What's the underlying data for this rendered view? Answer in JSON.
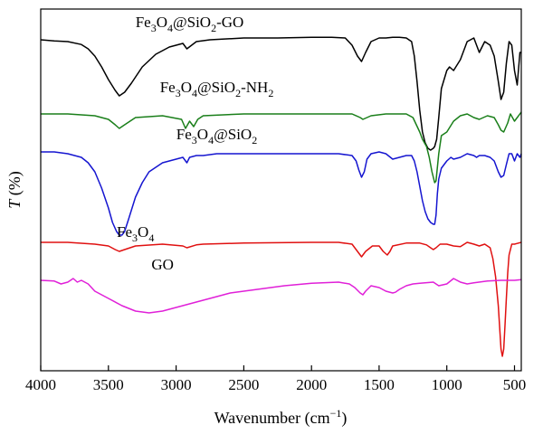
{
  "chart_data": {
    "type": "line",
    "title": "",
    "xlabel_main": "Wavenumber (cm",
    "xlabel_sup": "−1",
    "xlabel_tail": ")",
    "ylabel_italic": "T",
    "ylabel_tail": " (%)",
    "x_ticks": [
      "4000",
      "3500",
      "3000",
      "2500",
      "2000",
      "1500",
      "1000",
      "500"
    ],
    "xlim": [
      4000,
      450
    ],
    "x_reversed": true,
    "ylim": [
      0,
      100
    ],
    "y_ticks_shown": false,
    "grid": false,
    "legend": "none (series labelled inline)",
    "series": [
      {
        "name": "Fe3O4@SiO2-GO",
        "label_parts": [
          [
            "Fe",
            ""
          ],
          [
            "3",
            "sub"
          ],
          [
            "O",
            ""
          ],
          [
            "4",
            "sub"
          ],
          [
            "@SiO",
            ""
          ],
          [
            "2",
            "sub"
          ],
          [
            "-GO",
            ""
          ]
        ],
        "color": "#000000",
        "x": [
          4000,
          3900,
          3800,
          3700,
          3650,
          3600,
          3550,
          3500,
          3450,
          3420,
          3380,
          3330,
          3250,
          3150,
          3050,
          2950,
          2920,
          2850,
          2750,
          2500,
          2250,
          2000,
          1850,
          1750,
          1700,
          1660,
          1630,
          1600,
          1560,
          1500,
          1450,
          1400,
          1350,
          1300,
          1260,
          1240,
          1220,
          1200,
          1180,
          1160,
          1140,
          1120,
          1100,
          1090,
          1075,
          1060,
          1040,
          1000,
          980,
          950,
          900,
          850,
          800,
          760,
          720,
          680,
          650,
          620,
          600,
          580,
          560,
          540,
          520,
          500,
          480,
          460,
          450
        ],
        "y": [
          91.5,
          91.2,
          91.0,
          90.2,
          89.0,
          87.0,
          84.0,
          80.5,
          77.5,
          76.0,
          77.0,
          79.5,
          84.0,
          87.5,
          89.5,
          90.5,
          89.0,
          91.0,
          91.5,
          92.0,
          92.0,
          92.2,
          92.2,
          92.0,
          90.0,
          87.0,
          85.5,
          88.0,
          91.0,
          92.0,
          92.0,
          92.2,
          92.2,
          92.0,
          91.0,
          87.0,
          80.0,
          72.0,
          66.0,
          63.0,
          61.5,
          61.0,
          61.5,
          62.0,
          64.0,
          70.0,
          78.0,
          83.0,
          84.0,
          83.0,
          86.0,
          91.0,
          92.0,
          88.0,
          91.0,
          90.0,
          87.0,
          80.0,
          75.0,
          77.0,
          85.0,
          91.0,
          90.0,
          83.0,
          79.0,
          88.0,
          88.0
        ]
      },
      {
        "name": "Fe3O4@SiO2-NH2",
        "label_parts": [
          [
            "Fe",
            ""
          ],
          [
            "3",
            "sub"
          ],
          [
            "O",
            ""
          ],
          [
            "4",
            "sub"
          ],
          [
            "@SiO",
            ""
          ],
          [
            "2",
            "sub"
          ],
          [
            "-NH",
            ""
          ],
          [
            "2",
            "sub"
          ]
        ],
        "color": "#1a7f1a",
        "x": [
          4000,
          3800,
          3600,
          3500,
          3450,
          3420,
          3380,
          3300,
          3100,
          2960,
          2930,
          2900,
          2870,
          2840,
          2800,
          2500,
          2000,
          1700,
          1640,
          1620,
          1560,
          1450,
          1400,
          1300,
          1250,
          1200,
          1180,
          1150,
          1130,
          1110,
          1090,
          1080,
          1060,
          1040,
          1000,
          950,
          900,
          850,
          800,
          760,
          700,
          650,
          620,
          600,
          580,
          550,
          530,
          500,
          480,
          450
        ],
        "y": [
          71.0,
          71.0,
          70.5,
          69.5,
          68.0,
          67.0,
          68.0,
          70.0,
          70.5,
          69.5,
          67.0,
          69.0,
          67.5,
          69.5,
          70.5,
          71.0,
          71.0,
          71.0,
          70.0,
          69.5,
          70.5,
          71.0,
          71.0,
          71.0,
          70.0,
          66.0,
          64.0,
          62.0,
          59.0,
          55.0,
          52.0,
          52.5,
          60.0,
          65.0,
          66.0,
          69.0,
          70.5,
          71.0,
          70.0,
          69.5,
          70.5,
          70.0,
          68.0,
          66.5,
          66.0,
          68.5,
          71.0,
          69.0,
          70.0,
          71.5
        ]
      },
      {
        "name": "Fe3O4@SiO2",
        "label_parts": [
          [
            "Fe",
            ""
          ],
          [
            "3",
            "sub"
          ],
          [
            "O",
            ""
          ],
          [
            "4",
            "sub"
          ],
          [
            "@SiO",
            ""
          ],
          [
            "2",
            "sub"
          ]
        ],
        "color": "#1515d0",
        "x": [
          4000,
          3900,
          3800,
          3700,
          3650,
          3600,
          3550,
          3500,
          3470,
          3440,
          3420,
          3400,
          3380,
          3350,
          3300,
          3250,
          3200,
          3100,
          3000,
          2950,
          2920,
          2900,
          2850,
          2800,
          2700,
          2500,
          2200,
          2000,
          1800,
          1700,
          1670,
          1650,
          1630,
          1610,
          1590,
          1560,
          1500,
          1450,
          1400,
          1350,
          1300,
          1260,
          1240,
          1220,
          1200,
          1180,
          1160,
          1140,
          1120,
          1100,
          1090,
          1080,
          1070,
          1060,
          1040,
          1000,
          970,
          950,
          900,
          850,
          800,
          780,
          760,
          720,
          680,
          650,
          620,
          600,
          580,
          560,
          540,
          520,
          500,
          480,
          460,
          450
        ],
        "y": [
          60.5,
          60.5,
          60.0,
          59.0,
          57.5,
          55.0,
          50.5,
          45.0,
          41.0,
          38.5,
          37.5,
          37.5,
          38.5,
          42.0,
          48.0,
          52.0,
          55.0,
          57.5,
          58.5,
          59.0,
          57.5,
          59.0,
          59.5,
          59.5,
          60.0,
          60.0,
          60.0,
          60.0,
          60.0,
          59.5,
          58.0,
          55.5,
          53.5,
          55.0,
          58.5,
          60.0,
          60.5,
          60.0,
          58.5,
          59.0,
          59.5,
          59.5,
          58.0,
          55.0,
          51.0,
          47.0,
          44.0,
          42.0,
          41.0,
          40.5,
          40.5,
          43.0,
          49.0,
          53.0,
          56.0,
          58.0,
          59.0,
          58.5,
          59.0,
          60.0,
          59.5,
          59.0,
          59.5,
          59.5,
          59.0,
          58.0,
          55.0,
          53.5,
          54.0,
          57.0,
          60.0,
          60.0,
          58.0,
          60.0,
          59.0,
          60.0
        ]
      },
      {
        "name": "Fe3O4",
        "label_parts": [
          [
            "Fe",
            ""
          ],
          [
            "3",
            "sub"
          ],
          [
            "O",
            ""
          ],
          [
            "4",
            "sub"
          ]
        ],
        "color": "#e01010",
        "x": [
          4000,
          3800,
          3600,
          3500,
          3450,
          3420,
          3380,
          3300,
          3100,
          2950,
          2920,
          2850,
          2800,
          2500,
          2000,
          1800,
          1700,
          1660,
          1630,
          1600,
          1550,
          1500,
          1470,
          1440,
          1420,
          1400,
          1300,
          1200,
          1150,
          1120,
          1100,
          1080,
          1050,
          1000,
          950,
          900,
          850,
          800,
          760,
          720,
          680,
          660,
          640,
          620,
          610,
          600,
          590,
          580,
          570,
          560,
          550,
          540,
          520,
          500,
          480,
          450
        ],
        "y": [
          35.5,
          35.5,
          35.0,
          34.5,
          33.5,
          33.0,
          33.5,
          34.5,
          35.0,
          34.5,
          34.0,
          34.8,
          35.0,
          35.3,
          35.5,
          35.5,
          35.0,
          33.0,
          31.5,
          33.0,
          34.5,
          34.5,
          33.0,
          32.0,
          33.0,
          34.5,
          35.3,
          35.3,
          34.8,
          34.0,
          33.5,
          34.0,
          35.0,
          35.0,
          34.5,
          34.3,
          35.5,
          35.0,
          34.5,
          35.0,
          34.0,
          31.0,
          26.0,
          18.0,
          12.0,
          6.0,
          4.0,
          6.0,
          13.0,
          20.0,
          27.0,
          32.0,
          35.0,
          35.0,
          35.2,
          35.5
        ]
      },
      {
        "name": "GO",
        "label_parts": [
          [
            "GO",
            ""
          ]
        ],
        "color": "#e020d8",
        "x": [
          4000,
          3900,
          3850,
          3800,
          3760,
          3730,
          3700,
          3650,
          3600,
          3500,
          3400,
          3300,
          3200,
          3100,
          3000,
          2900,
          2800,
          2700,
          2600,
          2400,
          2200,
          2000,
          1800,
          1720,
          1680,
          1640,
          1620,
          1600,
          1560,
          1500,
          1450,
          1400,
          1380,
          1350,
          1300,
          1250,
          1200,
          1100,
          1060,
          1000,
          950,
          900,
          850,
          800,
          700,
          600,
          500,
          450
        ],
        "y": [
          25.0,
          24.8,
          24.0,
          24.5,
          25.5,
          24.5,
          25.0,
          24.0,
          22.0,
          20.0,
          18.0,
          16.5,
          16.0,
          16.5,
          17.5,
          18.5,
          19.5,
          20.5,
          21.5,
          22.5,
          23.5,
          24.2,
          24.5,
          24.0,
          23.0,
          21.5,
          21.0,
          22.0,
          23.5,
          23.0,
          22.0,
          21.5,
          21.7,
          22.5,
          23.5,
          24.0,
          24.2,
          24.5,
          23.5,
          24.0,
          25.5,
          24.5,
          24.0,
          24.3,
          24.8,
          25.0,
          25.0,
          25.2
        ]
      }
    ],
    "label_anchor_x": [
      2900,
      2700,
      2700,
      3300,
      3100
    ],
    "label_anchor_y": [
      95,
      77,
      64,
      37,
      28
    ]
  }
}
